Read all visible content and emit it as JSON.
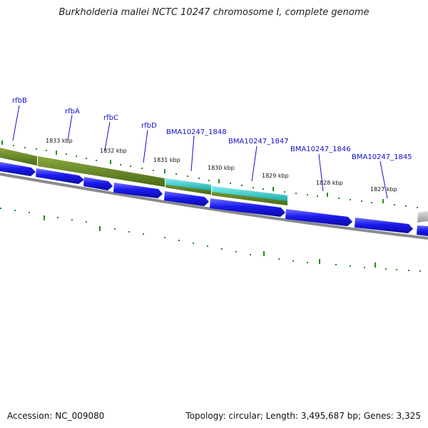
{
  "title": "Burkholderia mallei NCTC 10247 chromosome I, complete genome",
  "footer": {
    "accession": "Accession: NC_009080",
    "topology": "Topology: circular; Length: 3,495,687 bp; Genes: 3,325"
  },
  "colors": {
    "gene_blue": "#1a1aee",
    "green_band": "#5a7a1e",
    "cyan_band": "#22c8c8",
    "gray_ring": "#808080",
    "tick_green": "#228b22",
    "label_blue": "#1010c8"
  },
  "gene_labels": [
    "rfbB",
    "rfbA",
    "rfbC",
    "rfbD",
    "BMA10247_1848",
    "BMA10247_1847",
    "BMA10247_1846",
    "BMA10247_1845"
  ],
  "tick_labels": [
    "1833 kbp",
    "1832 kbp",
    "1831 kbp",
    "1830 kbp",
    "1829 kbp",
    "1828 kbp",
    "1827 kbp"
  ]
}
